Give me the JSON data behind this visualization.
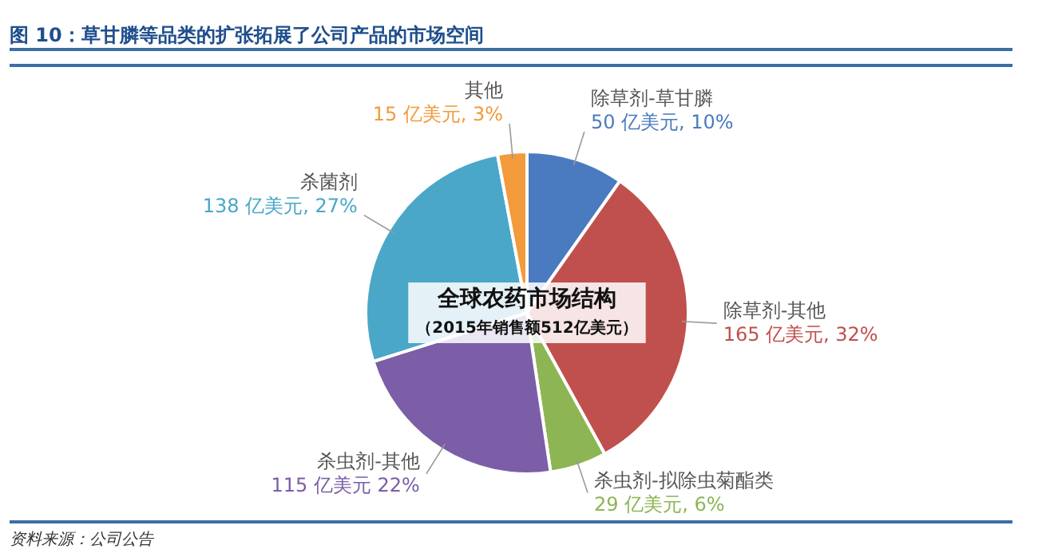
{
  "chart_data": {
    "type": "pie",
    "title": "图 10：草甘膦等品类的扩张拓展了公司产品的市场空间",
    "categories": [
      "除草剂-草甘膦",
      "除草剂-其他",
      "杀虫剂-拟除虫菊酯类",
      "杀虫剂-其他",
      "杀菌剂",
      "其他"
    ],
    "values": [
      50,
      165,
      29,
      115,
      138,
      15
    ],
    "colors": [
      "#4a7abf",
      "#c0504d",
      "#8db553",
      "#7b5ea7",
      "#4aa7c8",
      "#f39a3c"
    ],
    "value_labels": [
      "50 亿美元, 10%",
      "165 亿美元, 32%",
      "29 亿美元, 6%",
      "115 亿美元 22%",
      "138 亿美元, 27%",
      "15 亿美元, 3%"
    ],
    "legend": false,
    "annotations": [
      "全球农药市场结构",
      "（2015年销售额512亿美元）",
      "资料来源：公司公告"
    ]
  }
}
